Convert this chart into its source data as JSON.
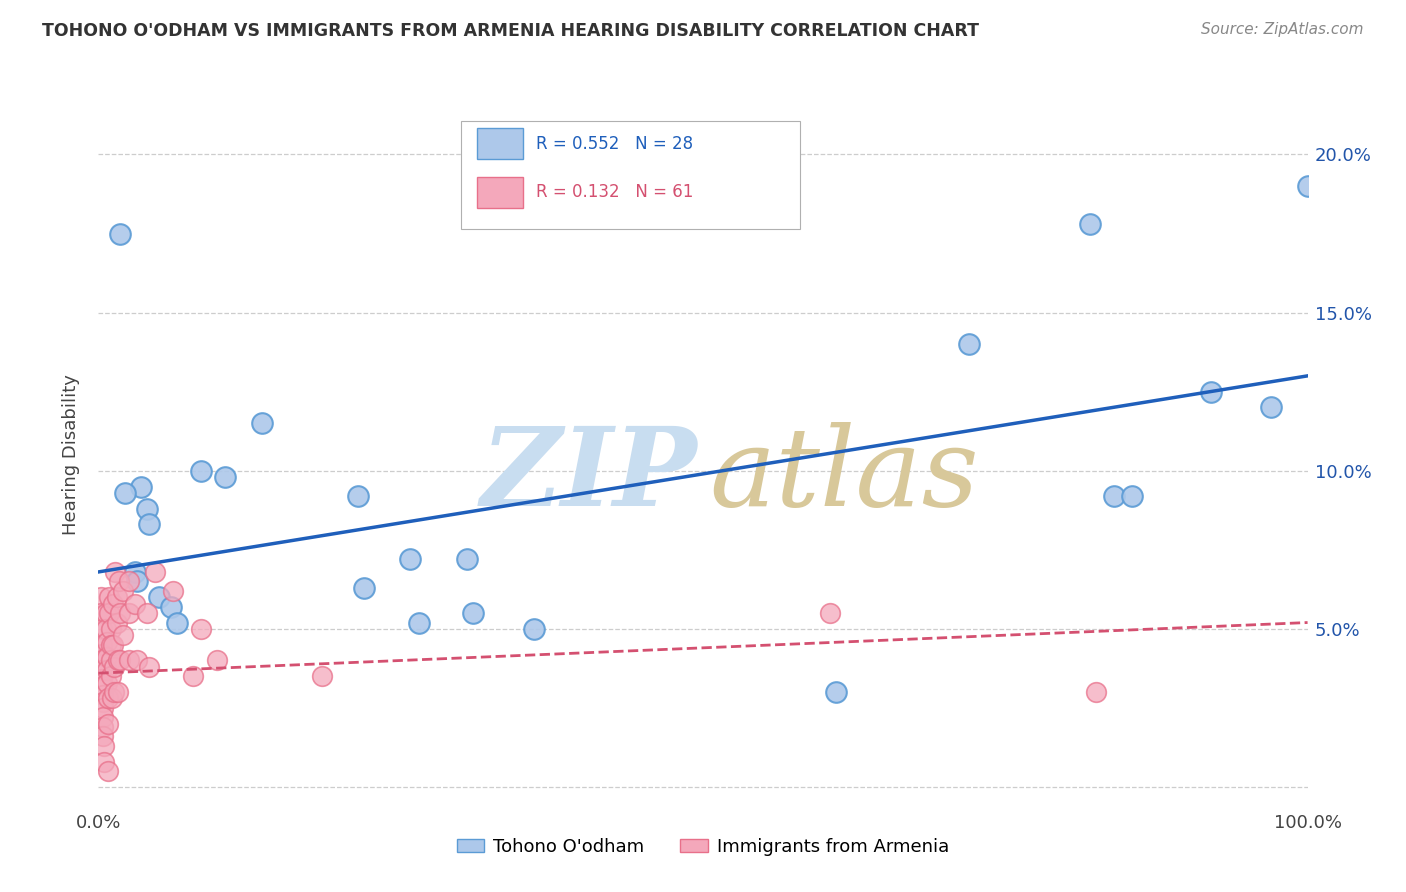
{
  "title": "TOHONO O'ODHAM VS IMMIGRANTS FROM ARMENIA HEARING DISABILITY CORRELATION CHART",
  "source": "Source: ZipAtlas.com",
  "ylabel": "Hearing Disability",
  "y_ticks": [
    0.0,
    0.05,
    0.1,
    0.15,
    0.2
  ],
  "y_tick_labels": [
    "",
    "5.0%",
    "10.0%",
    "15.0%",
    "20.0%"
  ],
  "x_range": [
    0.0,
    1.0
  ],
  "y_range": [
    -0.005,
    0.215
  ],
  "blue_points": [
    [
      0.018,
      0.175
    ],
    [
      0.035,
      0.095
    ],
    [
      0.04,
      0.088
    ],
    [
      0.042,
      0.083
    ],
    [
      0.022,
      0.093
    ],
    [
      0.03,
      0.068
    ],
    [
      0.032,
      0.065
    ],
    [
      0.05,
      0.06
    ],
    [
      0.06,
      0.057
    ],
    [
      0.065,
      0.052
    ],
    [
      0.085,
      0.1
    ],
    [
      0.105,
      0.098
    ],
    [
      0.135,
      0.115
    ],
    [
      0.215,
      0.092
    ],
    [
      0.22,
      0.063
    ],
    [
      0.258,
      0.072
    ],
    [
      0.265,
      0.052
    ],
    [
      0.305,
      0.072
    ],
    [
      0.31,
      0.055
    ],
    [
      0.36,
      0.05
    ],
    [
      0.61,
      0.03
    ],
    [
      0.72,
      0.14
    ],
    [
      0.82,
      0.178
    ],
    [
      0.84,
      0.092
    ],
    [
      0.855,
      0.092
    ],
    [
      0.92,
      0.125
    ],
    [
      0.97,
      0.12
    ],
    [
      1.0,
      0.19
    ]
  ],
  "pink_points": [
    [
      0.002,
      0.06
    ],
    [
      0.002,
      0.055
    ],
    [
      0.003,
      0.05
    ],
    [
      0.003,
      0.045
    ],
    [
      0.003,
      0.042
    ],
    [
      0.003,
      0.04
    ],
    [
      0.003,
      0.037
    ],
    [
      0.003,
      0.034
    ],
    [
      0.004,
      0.032
    ],
    [
      0.004,
      0.029
    ],
    [
      0.004,
      0.027
    ],
    [
      0.004,
      0.025
    ],
    [
      0.004,
      0.022
    ],
    [
      0.004,
      0.019
    ],
    [
      0.004,
      0.016
    ],
    [
      0.005,
      0.013
    ],
    [
      0.005,
      0.008
    ],
    [
      0.006,
      0.055
    ],
    [
      0.006,
      0.05
    ],
    [
      0.007,
      0.046
    ],
    [
      0.007,
      0.041
    ],
    [
      0.007,
      0.037
    ],
    [
      0.007,
      0.033
    ],
    [
      0.008,
      0.028
    ],
    [
      0.008,
      0.02
    ],
    [
      0.008,
      0.005
    ],
    [
      0.009,
      0.06
    ],
    [
      0.009,
      0.055
    ],
    [
      0.01,
      0.05
    ],
    [
      0.01,
      0.045
    ],
    [
      0.01,
      0.04
    ],
    [
      0.01,
      0.035
    ],
    [
      0.011,
      0.028
    ],
    [
      0.012,
      0.058
    ],
    [
      0.012,
      0.045
    ],
    [
      0.013,
      0.038
    ],
    [
      0.013,
      0.03
    ],
    [
      0.014,
      0.068
    ],
    [
      0.015,
      0.06
    ],
    [
      0.015,
      0.052
    ],
    [
      0.016,
      0.04
    ],
    [
      0.016,
      0.03
    ],
    [
      0.017,
      0.065
    ],
    [
      0.018,
      0.055
    ],
    [
      0.018,
      0.04
    ],
    [
      0.02,
      0.062
    ],
    [
      0.02,
      0.048
    ],
    [
      0.025,
      0.065
    ],
    [
      0.025,
      0.055
    ],
    [
      0.025,
      0.04
    ],
    [
      0.03,
      0.058
    ],
    [
      0.032,
      0.04
    ],
    [
      0.04,
      0.055
    ],
    [
      0.042,
      0.038
    ],
    [
      0.047,
      0.068
    ],
    [
      0.062,
      0.062
    ],
    [
      0.078,
      0.035
    ],
    [
      0.085,
      0.05
    ],
    [
      0.098,
      0.04
    ],
    [
      0.185,
      0.035
    ],
    [
      0.605,
      0.055
    ],
    [
      0.825,
      0.03
    ]
  ],
  "blue_line": {
    "x0": 0.0,
    "y0": 0.068,
    "x1": 1.0,
    "y1": 0.13
  },
  "pink_line": {
    "x0": 0.0,
    "y0": 0.036,
    "x1": 1.0,
    "y1": 0.052
  },
  "blue_color": "#5b9bd5",
  "pink_color": "#e8708a",
  "blue_fill": "#adc8ea",
  "pink_fill": "#f4a8bb",
  "line_blue": "#1f5fbb",
  "line_pink": "#d45070",
  "bg_color": "#ffffff",
  "grid_color": "#c8c8c8",
  "title_color": "#333333"
}
